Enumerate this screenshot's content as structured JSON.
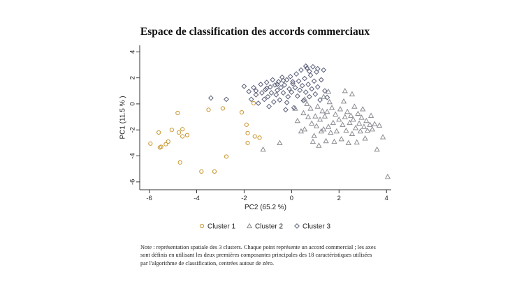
{
  "chart_data": {
    "type": "scatter",
    "title": "Espace de classification des accords commerciaux",
    "xlabel": "PC2 (65.2 %)",
    "ylabel": "PC1 (11.5 % )",
    "xlim": [
      -6.4,
      4.2
    ],
    "ylim": [
      -6.6,
      4.5
    ],
    "xticks": [
      -6,
      -4,
      -2,
      0,
      2,
      4
    ],
    "yticks": [
      -6,
      -4,
      -2,
      0,
      2,
      4
    ],
    "grid": false,
    "legend_position": "bottom",
    "series": [
      {
        "name": "Cluster 1",
        "marker": "circle",
        "color": "#c8962e",
        "points": [
          [
            -5.95,
            -3.05
          ],
          [
            -5.6,
            -2.2
          ],
          [
            -5.5,
            -3.3
          ],
          [
            -5.3,
            -3.1
          ],
          [
            -5.2,
            -2.9
          ],
          [
            -5.05,
            -2.0
          ],
          [
            -4.8,
            -0.7
          ],
          [
            -4.75,
            -2.2
          ],
          [
            -4.6,
            -1.95
          ],
          [
            -4.6,
            -2.5
          ],
          [
            -4.4,
            -2.4
          ],
          [
            -4.7,
            -4.5
          ],
          [
            -3.8,
            -5.2
          ],
          [
            -3.5,
            -0.45
          ],
          [
            -3.25,
            -5.2
          ],
          [
            -2.9,
            -0.35
          ],
          [
            -2.75,
            -4.05
          ],
          [
            -2.1,
            -0.65
          ],
          [
            -1.9,
            -1.6
          ],
          [
            -1.85,
            -2.25
          ],
          [
            -1.85,
            -3.0
          ],
          [
            -1.55,
            -2.5
          ],
          [
            -1.35,
            -2.6
          ],
          [
            -1.6,
            0.05
          ],
          [
            -5.55,
            -3.35
          ]
        ]
      },
      {
        "name": "Cluster 2",
        "marker": "triangle",
        "color": "#8a8c92",
        "points": [
          [
            -1.2,
            -3.5
          ],
          [
            -0.5,
            -3.0
          ],
          [
            0.15,
            -0.35
          ],
          [
            0.25,
            -1.3
          ],
          [
            0.4,
            -2.1
          ],
          [
            0.5,
            -0.7
          ],
          [
            0.55,
            -1.95
          ],
          [
            0.65,
            0.0
          ],
          [
            0.7,
            -1.0
          ],
          [
            0.8,
            -0.35
          ],
          [
            0.85,
            -1.5
          ],
          [
            0.9,
            -2.9
          ],
          [
            0.95,
            -2.45
          ],
          [
            1.0,
            -0.95
          ],
          [
            1.05,
            -1.7
          ],
          [
            1.1,
            -0.2
          ],
          [
            1.15,
            -3.2
          ],
          [
            1.2,
            -1.2
          ],
          [
            1.25,
            -2.1
          ],
          [
            1.3,
            -0.55
          ],
          [
            1.35,
            -1.95
          ],
          [
            1.4,
            -0.95
          ],
          [
            1.45,
            -2.85
          ],
          [
            1.5,
            -0.6
          ],
          [
            1.55,
            -1.75
          ],
          [
            1.6,
            0.15
          ],
          [
            1.65,
            -2.2
          ],
          [
            1.7,
            -0.3
          ],
          [
            1.75,
            -1.45
          ],
          [
            1.8,
            -2.9
          ],
          [
            1.85,
            -0.8
          ],
          [
            1.9,
            -2.1
          ],
          [
            2.0,
            -1.2
          ],
          [
            2.05,
            -0.4
          ],
          [
            2.1,
            -2.7
          ],
          [
            2.15,
            -1.6
          ],
          [
            2.2,
            0.2
          ],
          [
            2.25,
            -1.0
          ],
          [
            2.3,
            -2.05
          ],
          [
            2.35,
            -0.6
          ],
          [
            2.4,
            -3.0
          ],
          [
            2.45,
            -1.45
          ],
          [
            2.5,
            -0.9
          ],
          [
            2.55,
            -2.3
          ],
          [
            2.6,
            -1.2
          ],
          [
            2.65,
            -0.2
          ],
          [
            2.7,
            -1.85
          ],
          [
            2.75,
            -2.95
          ],
          [
            2.8,
            -0.75
          ],
          [
            2.85,
            -1.5
          ],
          [
            2.9,
            -2.1
          ],
          [
            2.95,
            -1.05
          ],
          [
            3.0,
            -0.4
          ],
          [
            3.05,
            -1.75
          ],
          [
            3.1,
            -2.65
          ],
          [
            3.15,
            -1.3
          ],
          [
            3.2,
            -2.05
          ],
          [
            3.3,
            -1.6
          ],
          [
            3.35,
            -0.9
          ],
          [
            3.4,
            -1.95
          ],
          [
            3.5,
            -1.55
          ],
          [
            3.6,
            -3.5
          ],
          [
            3.7,
            -1.65
          ],
          [
            3.85,
            -2.55
          ],
          [
            4.05,
            -5.6
          ],
          [
            1.55,
            0.95
          ],
          [
            2.55,
            0.75
          ],
          [
            2.25,
            1.0
          ],
          [
            0.55,
            0.35
          ],
          [
            1.35,
            0.55
          ]
        ]
      },
      {
        "name": "Cluster 3",
        "marker": "diamond",
        "color": "#5a5f78",
        "points": [
          [
            -3.4,
            0.45
          ],
          [
            -2.75,
            0.35
          ],
          [
            -2.0,
            1.35
          ],
          [
            -1.8,
            0.95
          ],
          [
            -1.7,
            0.35
          ],
          [
            -1.6,
            1.25
          ],
          [
            -1.5,
            0.7
          ],
          [
            -1.4,
            0.05
          ],
          [
            -1.3,
            1.5
          ],
          [
            -1.25,
            0.85
          ],
          [
            -1.15,
            0.35
          ],
          [
            -1.1,
            1.1
          ],
          [
            -1.05,
            1.65
          ],
          [
            -1.0,
            0.55
          ],
          [
            -0.95,
            -0.2
          ],
          [
            -0.9,
            1.3
          ],
          [
            -0.85,
            0.85
          ],
          [
            -0.8,
            1.85
          ],
          [
            -0.75,
            0.15
          ],
          [
            -0.7,
            1.45
          ],
          [
            -0.65,
            0.7
          ],
          [
            -0.6,
            1.05
          ],
          [
            -0.55,
            1.7
          ],
          [
            -0.5,
            0.3
          ],
          [
            -0.45,
            1.25
          ],
          [
            -0.4,
            2.05
          ],
          [
            -0.35,
            0.85
          ],
          [
            -0.3,
            1.45
          ],
          [
            -0.25,
            -0.45
          ],
          [
            -0.2,
            1.85
          ],
          [
            -0.15,
            0.55
          ],
          [
            -0.1,
            1.15
          ],
          [
            -0.05,
            2.1
          ],
          [
            0.0,
            0.9
          ],
          [
            0.05,
            1.55
          ],
          [
            0.1,
            -0.3
          ],
          [
            0.15,
            1.25
          ],
          [
            0.2,
            2.3
          ],
          [
            0.25,
            0.6
          ],
          [
            0.3,
            1.75
          ],
          [
            0.35,
            1.05
          ],
          [
            0.4,
            2.6
          ],
          [
            0.45,
            1.4
          ],
          [
            0.5,
            0.25
          ],
          [
            0.55,
            1.95
          ],
          [
            0.6,
            0.9
          ],
          [
            0.65,
            2.75
          ],
          [
            0.7,
            1.5
          ],
          [
            0.75,
            0.55
          ],
          [
            0.8,
            2.2
          ],
          [
            0.85,
            1.15
          ],
          [
            0.9,
            2.85
          ],
          [
            0.95,
            1.75
          ],
          [
            1.0,
            0.75
          ],
          [
            1.05,
            2.45
          ],
          [
            1.1,
            1.3
          ],
          [
            1.2,
            0.3
          ],
          [
            1.25,
            1.85
          ],
          [
            1.35,
            2.6
          ],
          [
            1.4,
            1.0
          ],
          [
            1.5,
            0.5
          ],
          [
            1.1,
            2.7
          ],
          [
            -1.5,
            1.0
          ],
          [
            -0.2,
            0.1
          ],
          [
            0.75,
            2.5
          ],
          [
            -1.05,
            1.2
          ],
          [
            -0.6,
            1.5
          ],
          [
            0.05,
            1.7
          ],
          [
            0.6,
            2.9
          ],
          [
            -0.35,
            1.8
          ]
        ]
      }
    ]
  },
  "legend": {
    "items": [
      "Cluster 1",
      "Cluster 2",
      "Cluster 3"
    ]
  },
  "note": {
    "lines": [
      "Note : représentation spatiale des 3 clusters. Chaque point représente un accord commercial ; les axes",
      "sont définis en utilisant les deux premières composantes principales des 18 caractéristiques utilisées",
      "par l'algorithme de classification, centrées autour de zéro."
    ]
  }
}
